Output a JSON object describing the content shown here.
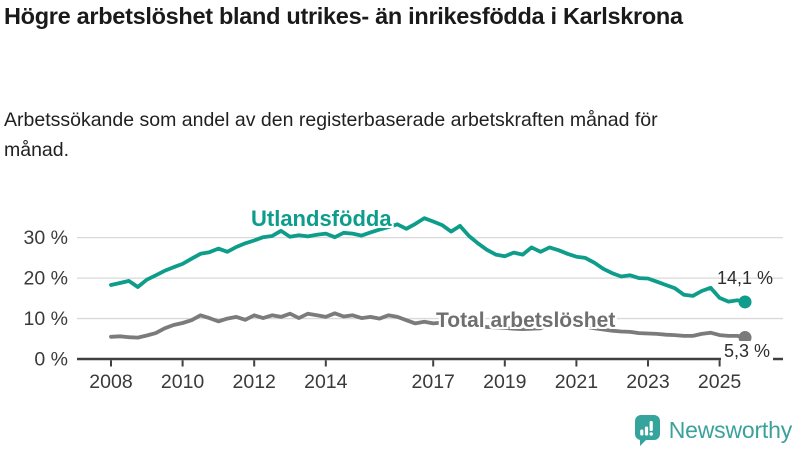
{
  "header": {
    "title": "Högre arbetslöshet bland utrikes- än inrikesfödda i Karlskrona",
    "subtitle": "Arbetssökande som andel av den registerbaserade arbetskraften månad för månad."
  },
  "chart_data": {
    "type": "line",
    "title": "Högre arbetslöshet bland utrikes- än inrikesfödda i Karlskrona",
    "xlabel": "",
    "ylabel": "",
    "grid": "horizontal-light",
    "legend_position": "inline-labels",
    "x_start": 2008.0,
    "x_step": 0.25,
    "x_final": 2025.71,
    "xlim": [
      2007.1,
      2026.8
    ],
    "ylim": [
      0,
      37
    ],
    "x_ticks": [
      2008,
      2010,
      2012,
      2014,
      2017,
      2019,
      2021,
      2023,
      2025
    ],
    "y_ticks": [
      0,
      10,
      20,
      30
    ],
    "y_tick_suffix": " %",
    "series": [
      {
        "name": "Utlandsfödda",
        "color": "#0e9c8b",
        "end_label": "14,1 %",
        "end_value": 14.1,
        "values": [
          18.3,
          18.8,
          19.3,
          17.8,
          19.6,
          20.7,
          21.8,
          22.7,
          23.5,
          24.8,
          26.0,
          26.4,
          27.3,
          26.5,
          27.7,
          28.6,
          29.3,
          30.1,
          30.4,
          31.7,
          30.2,
          30.6,
          30.3,
          30.7,
          31.0,
          30.1,
          31.2,
          31.0,
          30.5,
          31.3,
          32.0,
          32.6,
          33.3,
          32.2,
          33.4,
          34.8,
          34.0,
          33.1,
          31.5,
          32.9,
          30.4,
          28.6,
          27.0,
          25.8,
          25.4,
          26.3,
          25.8,
          27.6,
          26.5,
          27.6,
          26.9,
          26.0,
          25.3,
          25.0,
          23.8,
          22.3,
          21.2,
          20.4,
          20.7,
          20.0,
          19.9,
          19.1,
          18.3,
          17.5,
          15.9,
          15.6,
          16.8,
          17.6,
          15.1,
          14.2,
          14.5,
          14.1
        ]
      },
      {
        "name": "Total arbetslöshet",
        "color": "#7b7b7b",
        "end_label": "5,3 %",
        "end_value": 5.3,
        "values": [
          5.5,
          5.6,
          5.4,
          5.3,
          5.8,
          6.4,
          7.6,
          8.4,
          8.9,
          9.6,
          10.8,
          10.1,
          9.3,
          10.0,
          10.4,
          9.7,
          10.8,
          10.1,
          10.8,
          10.4,
          11.2,
          10.1,
          11.2,
          10.8,
          10.4,
          11.3,
          10.5,
          10.8,
          10.1,
          10.4,
          10.0,
          10.8,
          10.4,
          9.6,
          8.8,
          9.2,
          8.8,
          9.0,
          8.8,
          8.5,
          8.3,
          8.1,
          7.9,
          7.8,
          7.7,
          7.5,
          7.4,
          7.5,
          7.6,
          8.6,
          8.9,
          8.6,
          8.3,
          8.0,
          7.6,
          7.3,
          7.0,
          6.8,
          6.7,
          6.4,
          6.3,
          6.2,
          6.0,
          5.9,
          5.7,
          5.7,
          6.2,
          6.5,
          5.9,
          5.7,
          5.7,
          5.3
        ]
      }
    ]
  },
  "footer": {
    "brand": "Newsworthy",
    "brand_color": "#3ba29b"
  },
  "colors": {
    "accent_teal": "#0e9c8b",
    "series_gray": "#7b7b7b",
    "axis": "#404040",
    "gridline": "#d9d9d9",
    "tick_text": "#3a3a3a"
  }
}
